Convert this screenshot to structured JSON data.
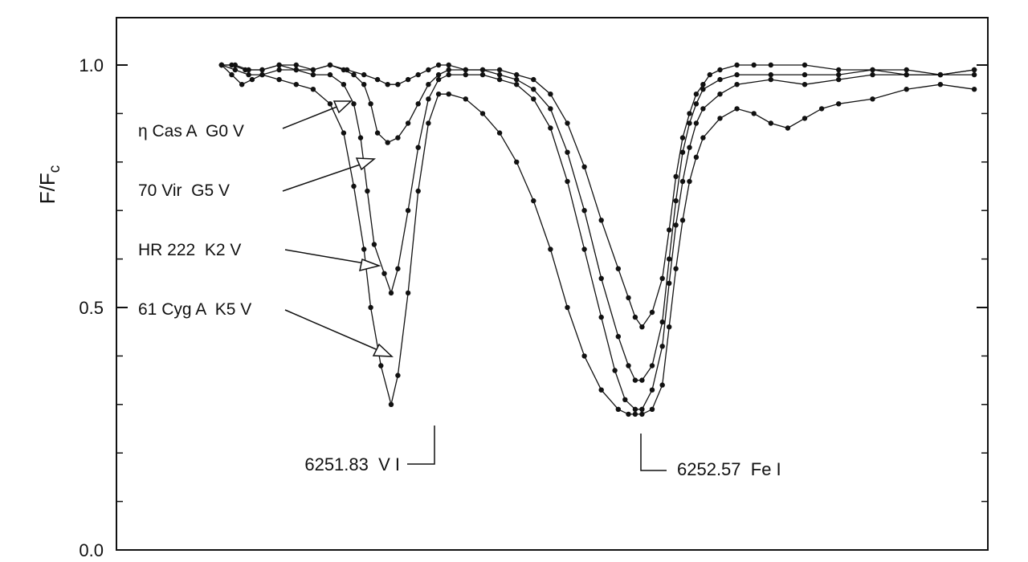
{
  "chart_data": {
    "type": "line",
    "title": "",
    "xlabel": "",
    "ylabel": "F/F",
    "ylabel_subscript": "c",
    "ylim": [
      0.0,
      1.1
    ],
    "xlim": [
      6250.97,
      6253.54
    ],
    "yticks": [
      {
        "value": 0.0,
        "label": "0.0"
      },
      {
        "value": 0.5,
        "label": "0.5"
      },
      {
        "value": 1.0,
        "label": "1.0"
      }
    ],
    "yminor_ticks": [
      0.1,
      0.2,
      0.3,
      0.4,
      0.6,
      0.7,
      0.8,
      0.9
    ],
    "grid": false,
    "marker": "dot",
    "series": [
      {
        "name": "η Cas A  G0 V",
        "x": [
          6251.28,
          6251.31,
          6251.35,
          6251.4,
          6251.45,
          6251.5,
          6251.55,
          6251.6,
          6251.65,
          6251.7,
          6251.74,
          6251.77,
          6251.8,
          6251.83,
          6251.86,
          6251.89,
          6251.92,
          6251.95,
          6252.0,
          6252.05,
          6252.1,
          6252.15,
          6252.2,
          6252.25,
          6252.3,
          6252.35,
          6252.4,
          6252.45,
          6252.48,
          6252.5,
          6252.52,
          6252.55,
          6252.58,
          6252.6,
          6252.62,
          6252.64,
          6252.66,
          6252.68,
          6252.7,
          6252.72,
          6252.75,
          6252.8,
          6252.85,
          6252.9,
          6253.0,
          6253.1,
          6253.2,
          6253.3,
          6253.4,
          6253.5
        ],
        "y": [
          1.0,
          1.0,
          0.99,
          0.99,
          1.0,
          1.0,
          0.99,
          1.0,
          0.99,
          0.98,
          0.97,
          0.96,
          0.96,
          0.97,
          0.98,
          0.99,
          1.0,
          1.0,
          0.99,
          0.99,
          0.99,
          0.98,
          0.97,
          0.94,
          0.88,
          0.79,
          0.68,
          0.58,
          0.52,
          0.48,
          0.46,
          0.49,
          0.56,
          0.66,
          0.77,
          0.85,
          0.9,
          0.94,
          0.96,
          0.98,
          0.99,
          1.0,
          1.0,
          1.0,
          1.0,
          0.99,
          0.99,
          0.99,
          0.98,
          0.99
        ]
      },
      {
        "name": "70 Vir  G5 V",
        "x": [
          6251.28,
          6251.32,
          6251.36,
          6251.4,
          6251.45,
          6251.5,
          6251.55,
          6251.6,
          6251.64,
          6251.67,
          6251.7,
          6251.72,
          6251.74,
          6251.77,
          6251.8,
          6251.83,
          6251.86,
          6251.89,
          6251.92,
          6251.95,
          6252.0,
          6252.05,
          6252.1,
          6252.15,
          6252.2,
          6252.25,
          6252.3,
          6252.35,
          6252.4,
          6252.45,
          6252.48,
          6252.5,
          6252.52,
          6252.55,
          6252.58,
          6252.6,
          6252.62,
          6252.64,
          6252.66,
          6252.68,
          6252.7,
          6252.75,
          6252.8,
          6252.9,
          6253.0,
          6253.1,
          6253.2,
          6253.3,
          6253.4,
          6253.5
        ],
        "y": [
          1.0,
          1.0,
          0.99,
          0.99,
          1.0,
          0.99,
          0.99,
          1.0,
          0.99,
          0.98,
          0.96,
          0.92,
          0.86,
          0.84,
          0.85,
          0.88,
          0.92,
          0.96,
          0.98,
          0.99,
          0.99,
          0.99,
          0.98,
          0.97,
          0.95,
          0.91,
          0.82,
          0.7,
          0.56,
          0.44,
          0.38,
          0.35,
          0.35,
          0.38,
          0.47,
          0.6,
          0.72,
          0.82,
          0.88,
          0.92,
          0.95,
          0.97,
          0.98,
          0.98,
          0.98,
          0.98,
          0.99,
          0.98,
          0.98,
          0.98
        ]
      },
      {
        "name": "HR 222  K2 V",
        "x": [
          6251.28,
          6251.32,
          6251.36,
          6251.4,
          6251.45,
          6251.5,
          6251.55,
          6251.6,
          6251.64,
          6251.67,
          6251.69,
          6251.71,
          6251.73,
          6251.76,
          6251.78,
          6251.8,
          6251.83,
          6251.86,
          6251.89,
          6251.92,
          6251.95,
          6252.0,
          6252.05,
          6252.1,
          6252.15,
          6252.2,
          6252.25,
          6252.3,
          6252.35,
          6252.4,
          6252.44,
          6252.47,
          6252.5,
          6252.52,
          6252.55,
          6252.58,
          6252.6,
          6252.62,
          6252.64,
          6252.66,
          6252.68,
          6252.7,
          6252.75,
          6252.8,
          6252.9,
          6253.0,
          6253.1,
          6253.2,
          6253.3,
          6253.4,
          6253.5
        ],
        "y": [
          1.0,
          0.99,
          0.98,
          0.98,
          0.99,
          0.99,
          0.98,
          0.98,
          0.96,
          0.92,
          0.85,
          0.74,
          0.63,
          0.57,
          0.53,
          0.58,
          0.7,
          0.83,
          0.93,
          0.97,
          0.98,
          0.98,
          0.98,
          0.97,
          0.96,
          0.93,
          0.87,
          0.76,
          0.62,
          0.48,
          0.37,
          0.31,
          0.29,
          0.29,
          0.33,
          0.42,
          0.55,
          0.67,
          0.76,
          0.83,
          0.88,
          0.91,
          0.94,
          0.96,
          0.97,
          0.96,
          0.97,
          0.98,
          0.98,
          0.98,
          0.99
        ]
      },
      {
        "name": "61 Cyg A  K5 V",
        "x": [
          6251.28,
          6251.31,
          6251.34,
          6251.37,
          6251.4,
          6251.45,
          6251.5,
          6251.55,
          6251.6,
          6251.64,
          6251.67,
          6251.7,
          6251.72,
          6251.75,
          6251.78,
          6251.8,
          6251.83,
          6251.86,
          6251.89,
          6251.92,
          6251.95,
          6252.0,
          6252.05,
          6252.1,
          6252.15,
          6252.2,
          6252.25,
          6252.3,
          6252.35,
          6252.4,
          6252.45,
          6252.48,
          6252.5,
          6252.52,
          6252.55,
          6252.58,
          6252.6,
          6252.62,
          6252.64,
          6252.66,
          6252.68,
          6252.7,
          6252.75,
          6252.8,
          6252.85,
          6252.9,
          6252.95,
          6253.0,
          6253.05,
          6253.1,
          6253.2,
          6253.3,
          6253.4,
          6253.5
        ],
        "y": [
          1.0,
          0.98,
          0.96,
          0.97,
          0.98,
          0.97,
          0.96,
          0.95,
          0.92,
          0.86,
          0.75,
          0.62,
          0.5,
          0.38,
          0.3,
          0.36,
          0.53,
          0.74,
          0.88,
          0.94,
          0.94,
          0.93,
          0.9,
          0.86,
          0.8,
          0.72,
          0.62,
          0.5,
          0.4,
          0.33,
          0.29,
          0.28,
          0.28,
          0.28,
          0.29,
          0.34,
          0.46,
          0.58,
          0.68,
          0.76,
          0.81,
          0.85,
          0.89,
          0.91,
          0.9,
          0.88,
          0.87,
          0.89,
          0.91,
          0.92,
          0.93,
          0.95,
          0.96,
          0.95
        ]
      }
    ],
    "annotations": [
      {
        "text": "6251.83  V I",
        "x": 6251.83
      },
      {
        "text": "6252.57  Fe I",
        "x": 6252.57
      }
    ]
  }
}
